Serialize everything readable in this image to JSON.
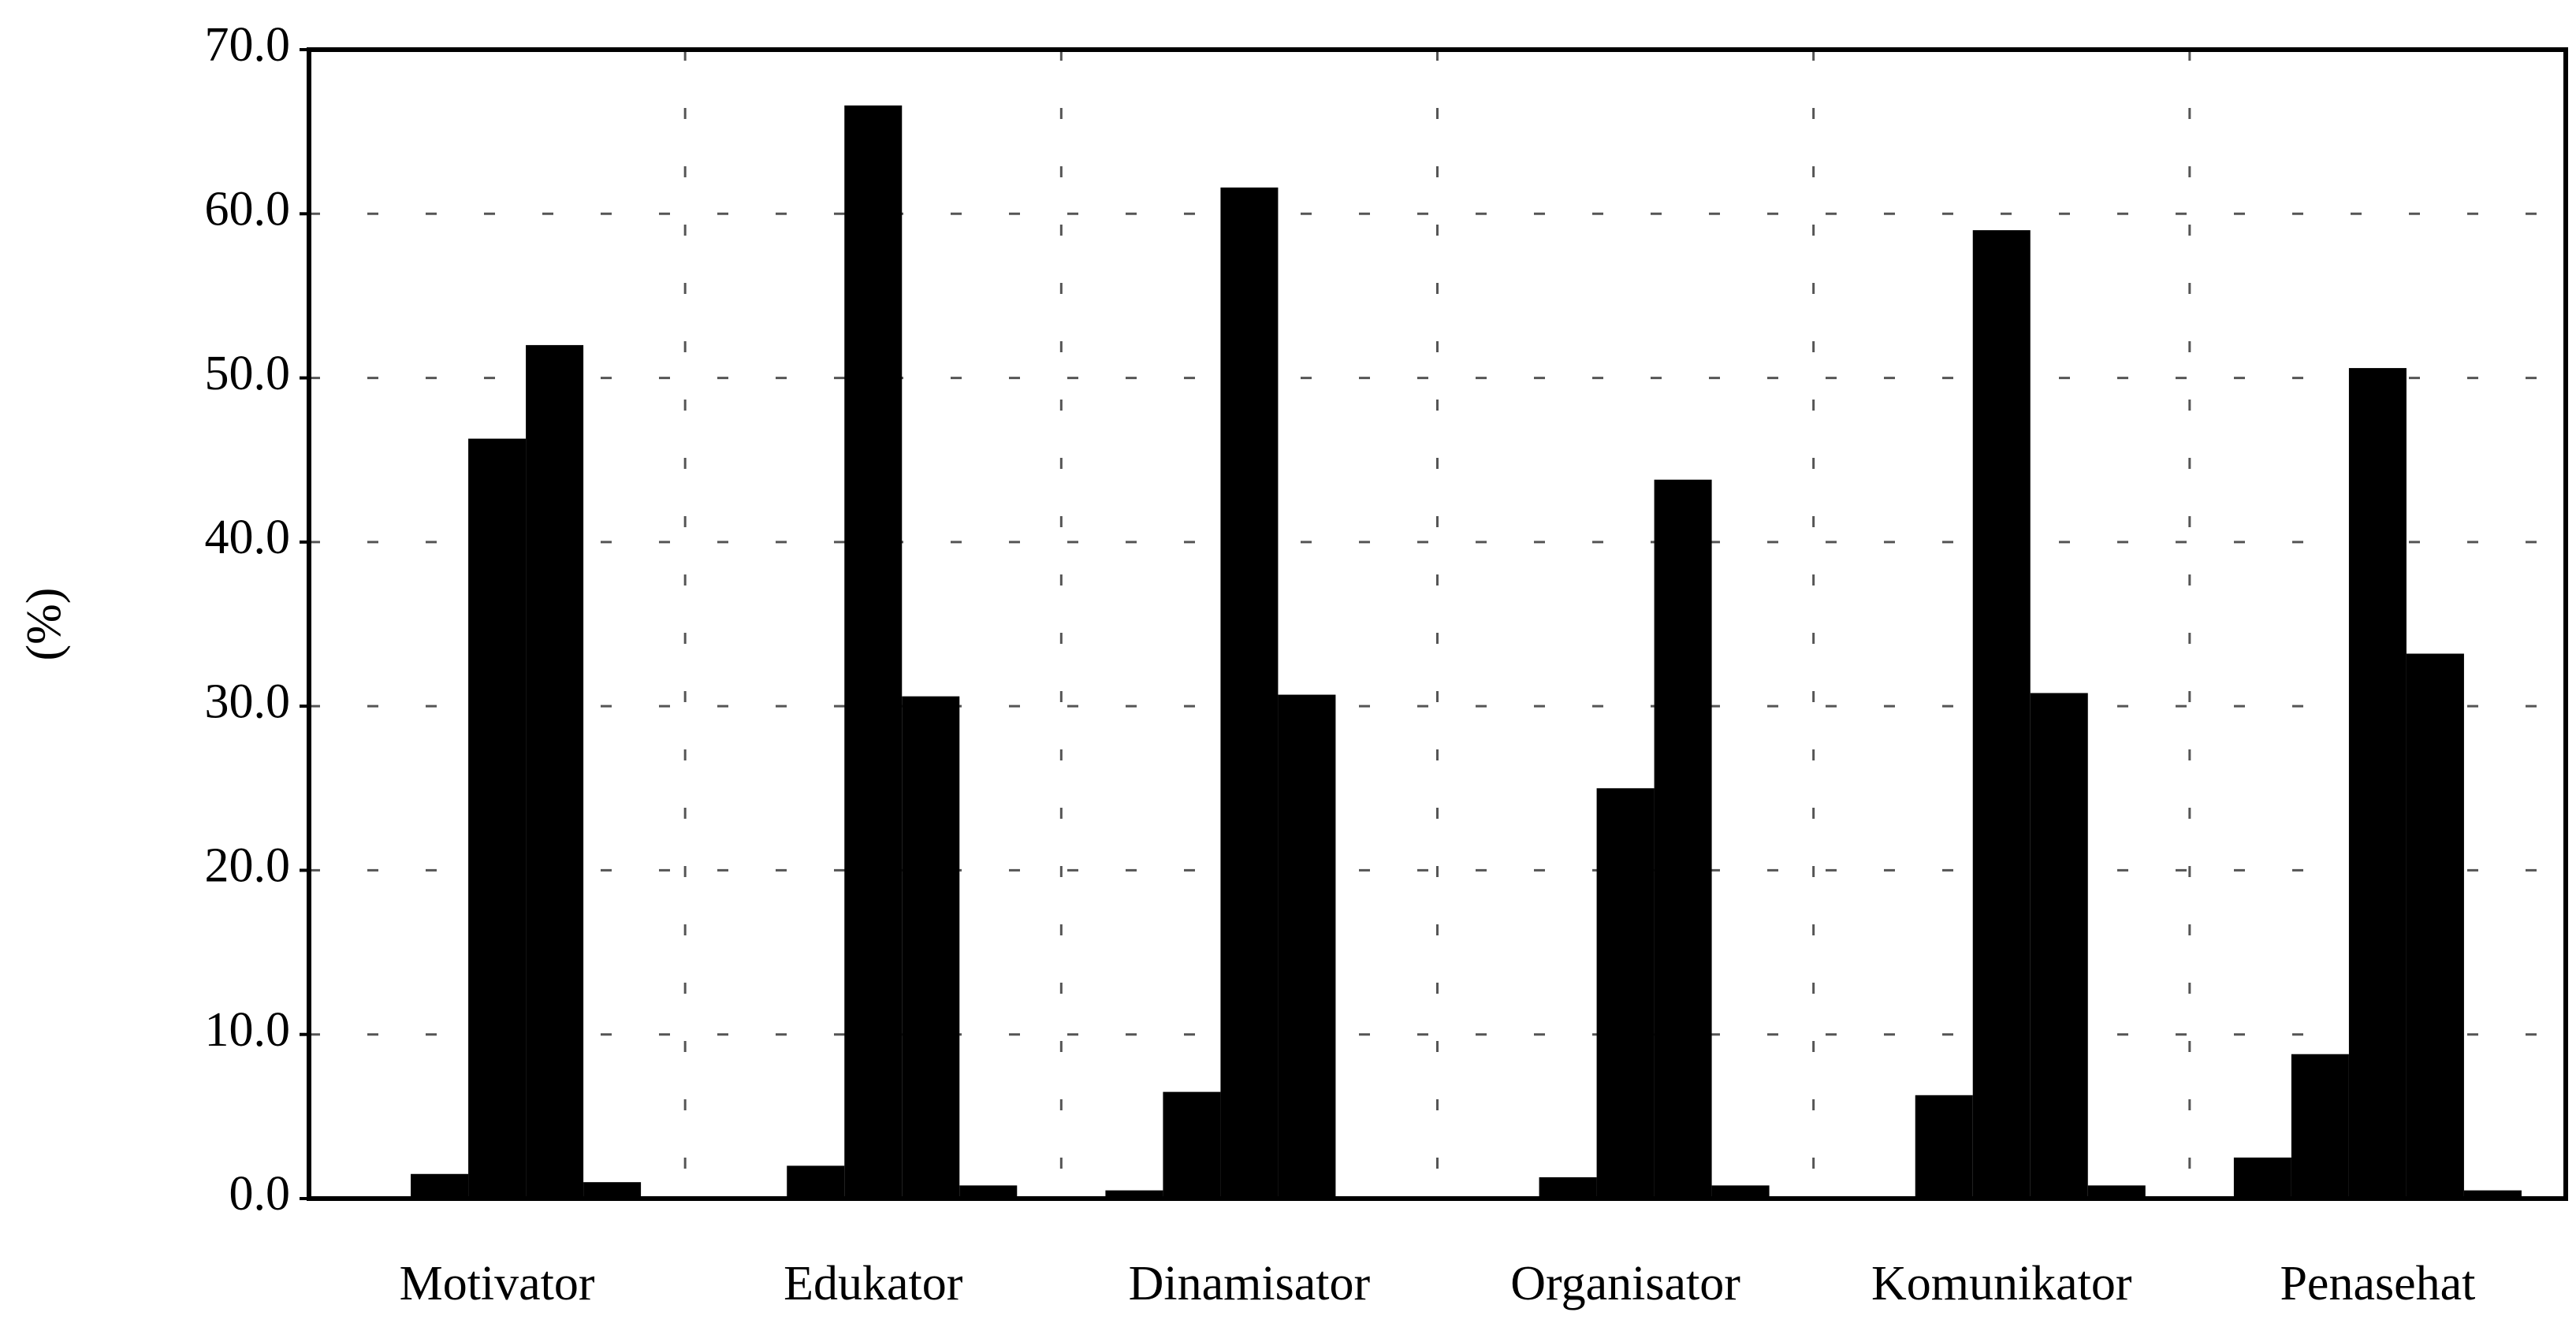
{
  "chart_data": {
    "type": "bar",
    "ylabel": "(%)",
    "categories": [
      "Motivator",
      "Edukator",
      "Dinamisator",
      "Organisator",
      "Komunikator",
      "Penasehat"
    ],
    "series": [
      {
        "color": "#000000",
        "values": [
          0,
          0,
          0.5,
          0,
          0,
          2.5
        ]
      },
      {
        "color": "#000000",
        "values": [
          1.5,
          2.0,
          6.5,
          1.3,
          6.3,
          8.8
        ]
      },
      {
        "color": "#000000",
        "values": [
          46.3,
          66.6,
          61.6,
          25.0,
          59.0,
          50.6
        ]
      },
      {
        "color": "#000000",
        "values": [
          52.0,
          30.6,
          30.7,
          43.8,
          30.8,
          33.2
        ]
      },
      {
        "color": "#000000",
        "values": [
          1.0,
          0.8,
          0,
          0.8,
          0.8,
          0.5
        ]
      }
    ],
    "ylim": [
      0,
      70
    ],
    "yticks": [
      {
        "value": 0,
        "label": "0.0"
      },
      {
        "value": 10,
        "label": "10.0"
      },
      {
        "value": 20,
        "label": "20.0"
      },
      {
        "value": 30,
        "label": "30.0"
      },
      {
        "value": 40,
        "label": "40.0"
      },
      {
        "value": 50,
        "label": "50.0"
      },
      {
        "value": 60,
        "label": "60.0"
      },
      {
        "value": 70,
        "label": "70.0"
      }
    ],
    "grid": true
  }
}
